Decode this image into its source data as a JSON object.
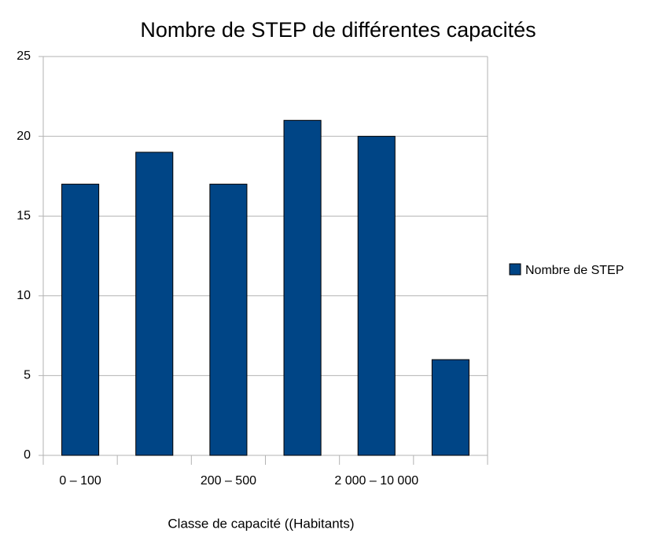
{
  "chart_data": {
    "type": "bar",
    "title": "Nombre de STEP de différentes capacités",
    "x_label": "Classe de capacité ((Habitants)",
    "categories": [
      "0 – 100",
      null,
      "200 – 500",
      null,
      "2 000 – 10 000",
      null
    ],
    "series": [
      {
        "name": "Nombre de STEP",
        "color": "#004586",
        "values": [
          17,
          19,
          17,
          21,
          20,
          6
        ]
      }
    ],
    "ylim": [
      0,
      25
    ],
    "yticks": [
      0,
      5,
      10,
      15,
      20,
      25
    ],
    "grid": true,
    "legend": "right"
  }
}
